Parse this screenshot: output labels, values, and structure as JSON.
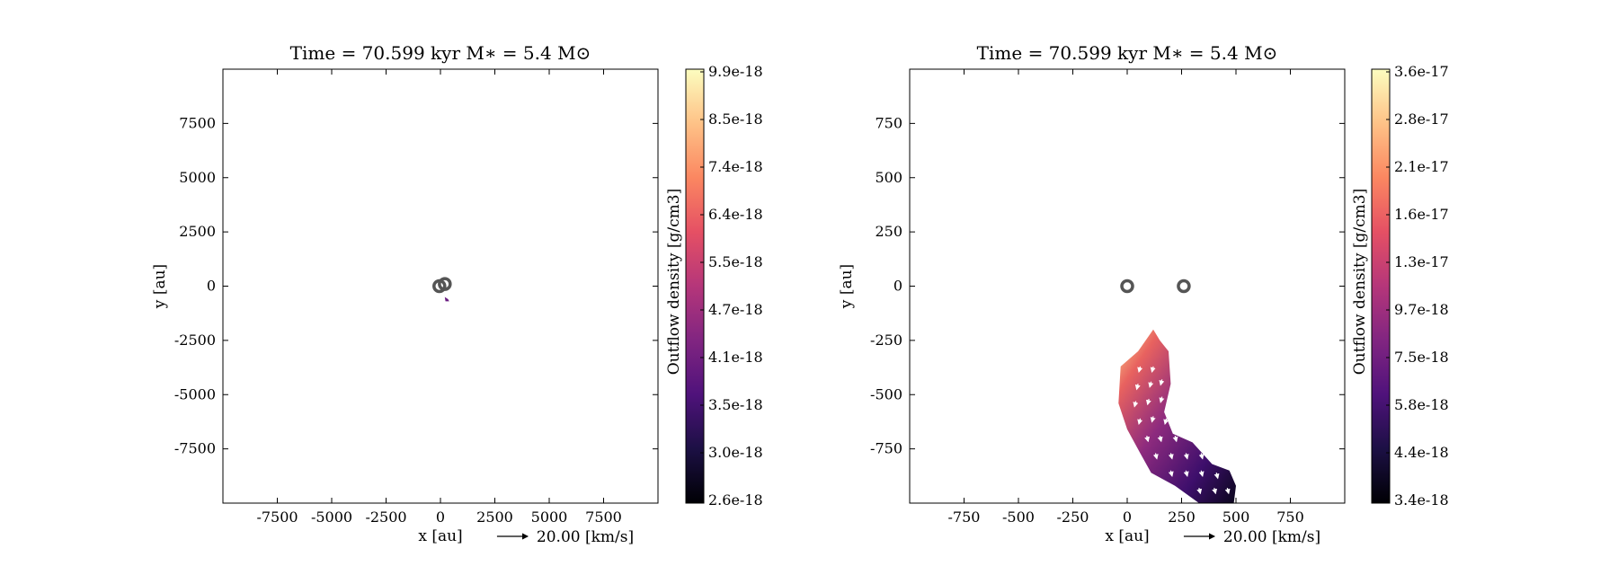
{
  "chart_data": [
    {
      "type": "heatmap",
      "title": "Time = 70.599 kyr    M∗ = 5.4 M⊙",
      "xlabel": "x [au]",
      "ylabel": "y [au]",
      "xlim": [
        -10000,
        10000
      ],
      "ylim": [
        -10000,
        10000
      ],
      "xticks": [
        -7500,
        -5000,
        -2500,
        0,
        2500,
        5000,
        7500
      ],
      "yticks": [
        7500,
        5000,
        2500,
        0,
        -2500,
        -5000,
        -7500
      ],
      "grid": false,
      "colorbar": {
        "label": "Outflow density [g/cm3]",
        "colormap": "magma",
        "min": 2.6e-18,
        "max": 9.9e-18,
        "tick_labels": [
          "9.9e-18",
          "8.5e-18",
          "7.4e-18",
          "6.4e-18",
          "5.5e-18",
          "4.7e-18",
          "4.1e-18",
          "3.5e-18",
          "3.0e-18",
          "2.6e-18"
        ]
      },
      "sinks": [
        {
          "x": -50,
          "y": 0
        },
        {
          "x": 200,
          "y": 100
        }
      ],
      "outflow_region": [
        {
          "x": 200,
          "y": -500
        },
        {
          "x": 230,
          "y": -700
        },
        {
          "x": 400,
          "y": -700
        },
        {
          "x": 350,
          "y": -600
        }
      ],
      "quiver_key": "20.00 [km/s]"
    },
    {
      "type": "heatmap",
      "title": "Time = 70.599 kyr    M∗ = 5.4 M⊙",
      "xlabel": "x [au]",
      "ylabel": "y [au]",
      "xlim": [
        -1000,
        1000
      ],
      "ylim": [
        -1000,
        1000
      ],
      "xticks": [
        -750,
        -500,
        -250,
        0,
        250,
        500,
        750
      ],
      "yticks": [
        750,
        500,
        250,
        0,
        -250,
        -500,
        -750
      ],
      "grid": false,
      "colorbar": {
        "label": "Outflow density [g/cm3]",
        "colormap": "magma",
        "min": 3.4e-18,
        "max": 3.6e-17,
        "tick_labels": [
          "3.6e-17",
          "2.8e-17",
          "2.1e-17",
          "1.6e-17",
          "1.3e-17",
          "9.7e-18",
          "7.5e-18",
          "5.8e-18",
          "4.4e-18",
          "3.4e-18"
        ]
      },
      "sinks": [
        {
          "x": 0,
          "y": 0
        },
        {
          "x": 260,
          "y": 0
        }
      ],
      "outflow_region": [
        {
          "x": 120,
          "y": -200
        },
        {
          "x": 150,
          "y": -250
        },
        {
          "x": 190,
          "y": -300
        },
        {
          "x": 200,
          "y": -450
        },
        {
          "x": 170,
          "y": -580
        },
        {
          "x": 210,
          "y": -680
        },
        {
          "x": 300,
          "y": -720
        },
        {
          "x": 390,
          "y": -820
        },
        {
          "x": 470,
          "y": -850
        },
        {
          "x": 500,
          "y": -920
        },
        {
          "x": 490,
          "y": -1000
        },
        {
          "x": 330,
          "y": -1000
        },
        {
          "x": 220,
          "y": -920
        },
        {
          "x": 110,
          "y": -860
        },
        {
          "x": 60,
          "y": -770
        },
        {
          "x": 0,
          "y": -660
        },
        {
          "x": -40,
          "y": -540
        },
        {
          "x": -30,
          "y": -370
        },
        {
          "x": 50,
          "y": -300
        }
      ],
      "velocity_vectors": [
        {
          "x": 60,
          "y": -370,
          "u": -1,
          "v": -4
        },
        {
          "x": 120,
          "y": -370,
          "u": -1,
          "v": -4
        },
        {
          "x": 50,
          "y": -450,
          "u": -1,
          "v": -4
        },
        {
          "x": 110,
          "y": -440,
          "u": -1,
          "v": -4
        },
        {
          "x": 160,
          "y": -430,
          "u": -1,
          "v": -4
        },
        {
          "x": 40,
          "y": -530,
          "u": -1,
          "v": -4
        },
        {
          "x": 100,
          "y": -520,
          "u": -1,
          "v": -4
        },
        {
          "x": 160,
          "y": -510,
          "u": -1,
          "v": -4
        },
        {
          "x": 60,
          "y": -610,
          "u": -1,
          "v": -4
        },
        {
          "x": 120,
          "y": -600,
          "u": -1,
          "v": -4
        },
        {
          "x": 180,
          "y": -610,
          "u": -1,
          "v": -4
        },
        {
          "x": 90,
          "y": -690,
          "u": 1,
          "v": -4
        },
        {
          "x": 150,
          "y": -690,
          "u": 1,
          "v": -4
        },
        {
          "x": 220,
          "y": -690,
          "u": 1,
          "v": -4
        },
        {
          "x": 130,
          "y": -770,
          "u": 1,
          "v": -4
        },
        {
          "x": 200,
          "y": -770,
          "u": 1,
          "v": -4
        },
        {
          "x": 270,
          "y": -770,
          "u": 1,
          "v": -4
        },
        {
          "x": 340,
          "y": -770,
          "u": 1,
          "v": -4
        },
        {
          "x": 200,
          "y": -850,
          "u": 1,
          "v": -4
        },
        {
          "x": 270,
          "y": -850,
          "u": 1,
          "v": -4
        },
        {
          "x": 340,
          "y": -850,
          "u": 1,
          "v": -4
        },
        {
          "x": 410,
          "y": -860,
          "u": 1,
          "v": -4
        },
        {
          "x": 330,
          "y": -930,
          "u": 1,
          "v": -4
        },
        {
          "x": 400,
          "y": -930,
          "u": 1,
          "v": -4
        },
        {
          "x": 460,
          "y": -930,
          "u": 1,
          "v": -4
        }
      ],
      "quiver_key": "20.00 [km/s]"
    }
  ],
  "colors": {
    "magma": [
      "#000004",
      "#1c1044",
      "#4f127b",
      "#812581",
      "#b5367a",
      "#e55064",
      "#fb8761",
      "#fec287",
      "#fcfdbf"
    ],
    "sink_marker": "#555555",
    "vector": "#ffffff",
    "axes": "#000000"
  }
}
